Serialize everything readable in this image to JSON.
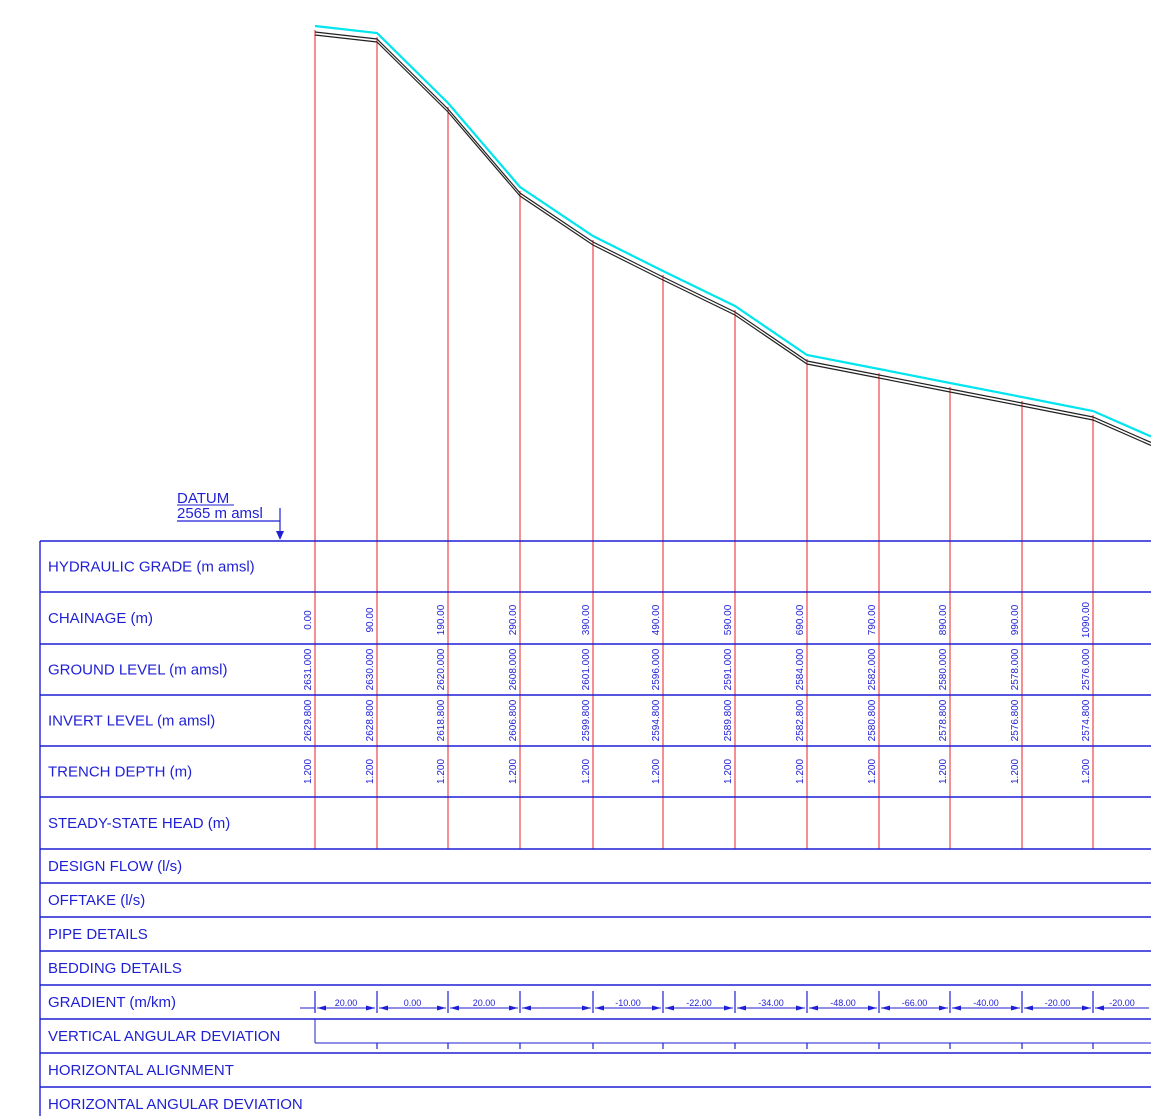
{
  "datum": {
    "label": "DATUM",
    "value": "2565 m amsl"
  },
  "rows": [
    {
      "key": "hydraulic-grade",
      "label": "HYDRAULIC GRADE (m amsl)"
    },
    {
      "key": "chainage",
      "label": "CHAINAGE (m)"
    },
    {
      "key": "ground-level",
      "label": "GROUND LEVEL (m amsl)"
    },
    {
      "key": "invert-level",
      "label": "INVERT LEVEL (m amsl)"
    },
    {
      "key": "trench-depth",
      "label": "TRENCH DEPTH (m)"
    },
    {
      "key": "steady-state-head",
      "label": "STEADY-STATE HEAD  (m)"
    },
    {
      "key": "design-flow",
      "label": "DESIGN FLOW (l/s)"
    },
    {
      "key": "offtake",
      "label": "OFFTAKE (l/s)"
    },
    {
      "key": "pipe-details",
      "label": "PIPE DETAILS"
    },
    {
      "key": "bedding-details",
      "label": "BEDDING DETAILS"
    },
    {
      "key": "gradient",
      "label": "GRADIENT (m/km)"
    },
    {
      "key": "vertical-angular-deviation",
      "label": "VERTICAL ANGULAR DEVIATION"
    },
    {
      "key": "horizontal-alignment",
      "label": "HORIZONTAL ALIGNMENT"
    },
    {
      "key": "horizontal-angular-deviation",
      "label": "HORIZONTAL ANGULAR DEVIATION"
    }
  ],
  "stations": [
    {
      "chainage": "0.00",
      "ground": "2631.000",
      "invert": "2629.800",
      "depth": "1.200"
    },
    {
      "chainage": "90.00",
      "ground": "2630.000",
      "invert": "2628.800",
      "depth": "1.200"
    },
    {
      "chainage": "190.00",
      "ground": "2620.000",
      "invert": "2618.800",
      "depth": "1.200"
    },
    {
      "chainage": "290.00",
      "ground": "2608.000",
      "invert": "2606.800",
      "depth": "1.200"
    },
    {
      "chainage": "390.00",
      "ground": "2601.000",
      "invert": "2599.800",
      "depth": "1.200"
    },
    {
      "chainage": "490.00",
      "ground": "2596.000",
      "invert": "2594.800",
      "depth": "1.200"
    },
    {
      "chainage": "590.00",
      "ground": "2591.000",
      "invert": "2589.800",
      "depth": "1.200"
    },
    {
      "chainage": "690.00",
      "ground": "2584.000",
      "invert": "2582.800",
      "depth": "1.200"
    },
    {
      "chainage": "790.00",
      "ground": "2582.000",
      "invert": "2580.800",
      "depth": "1.200"
    },
    {
      "chainage": "890.00",
      "ground": "2580.000",
      "invert": "2578.800",
      "depth": "1.200"
    },
    {
      "chainage": "990.00",
      "ground": "2578.000",
      "invert": "2576.800",
      "depth": "1.200"
    },
    {
      "chainage": "1090.00",
      "ground": "2576.000",
      "invert": "2574.800",
      "depth": "1.200"
    }
  ],
  "gradients": [
    "20.00",
    "0.00",
    "20.00",
    "",
    "-10.00",
    "-22.00",
    "-34.00",
    "-48.00",
    "-66.00",
    "-40.00",
    "-20.00",
    "-20.00"
  ],
  "colors": {
    "table": "#1f1fd6",
    "hydraulic_grade": "#00e5ee",
    "ground_line": "#222222",
    "station_line": "#e8202a"
  }
}
